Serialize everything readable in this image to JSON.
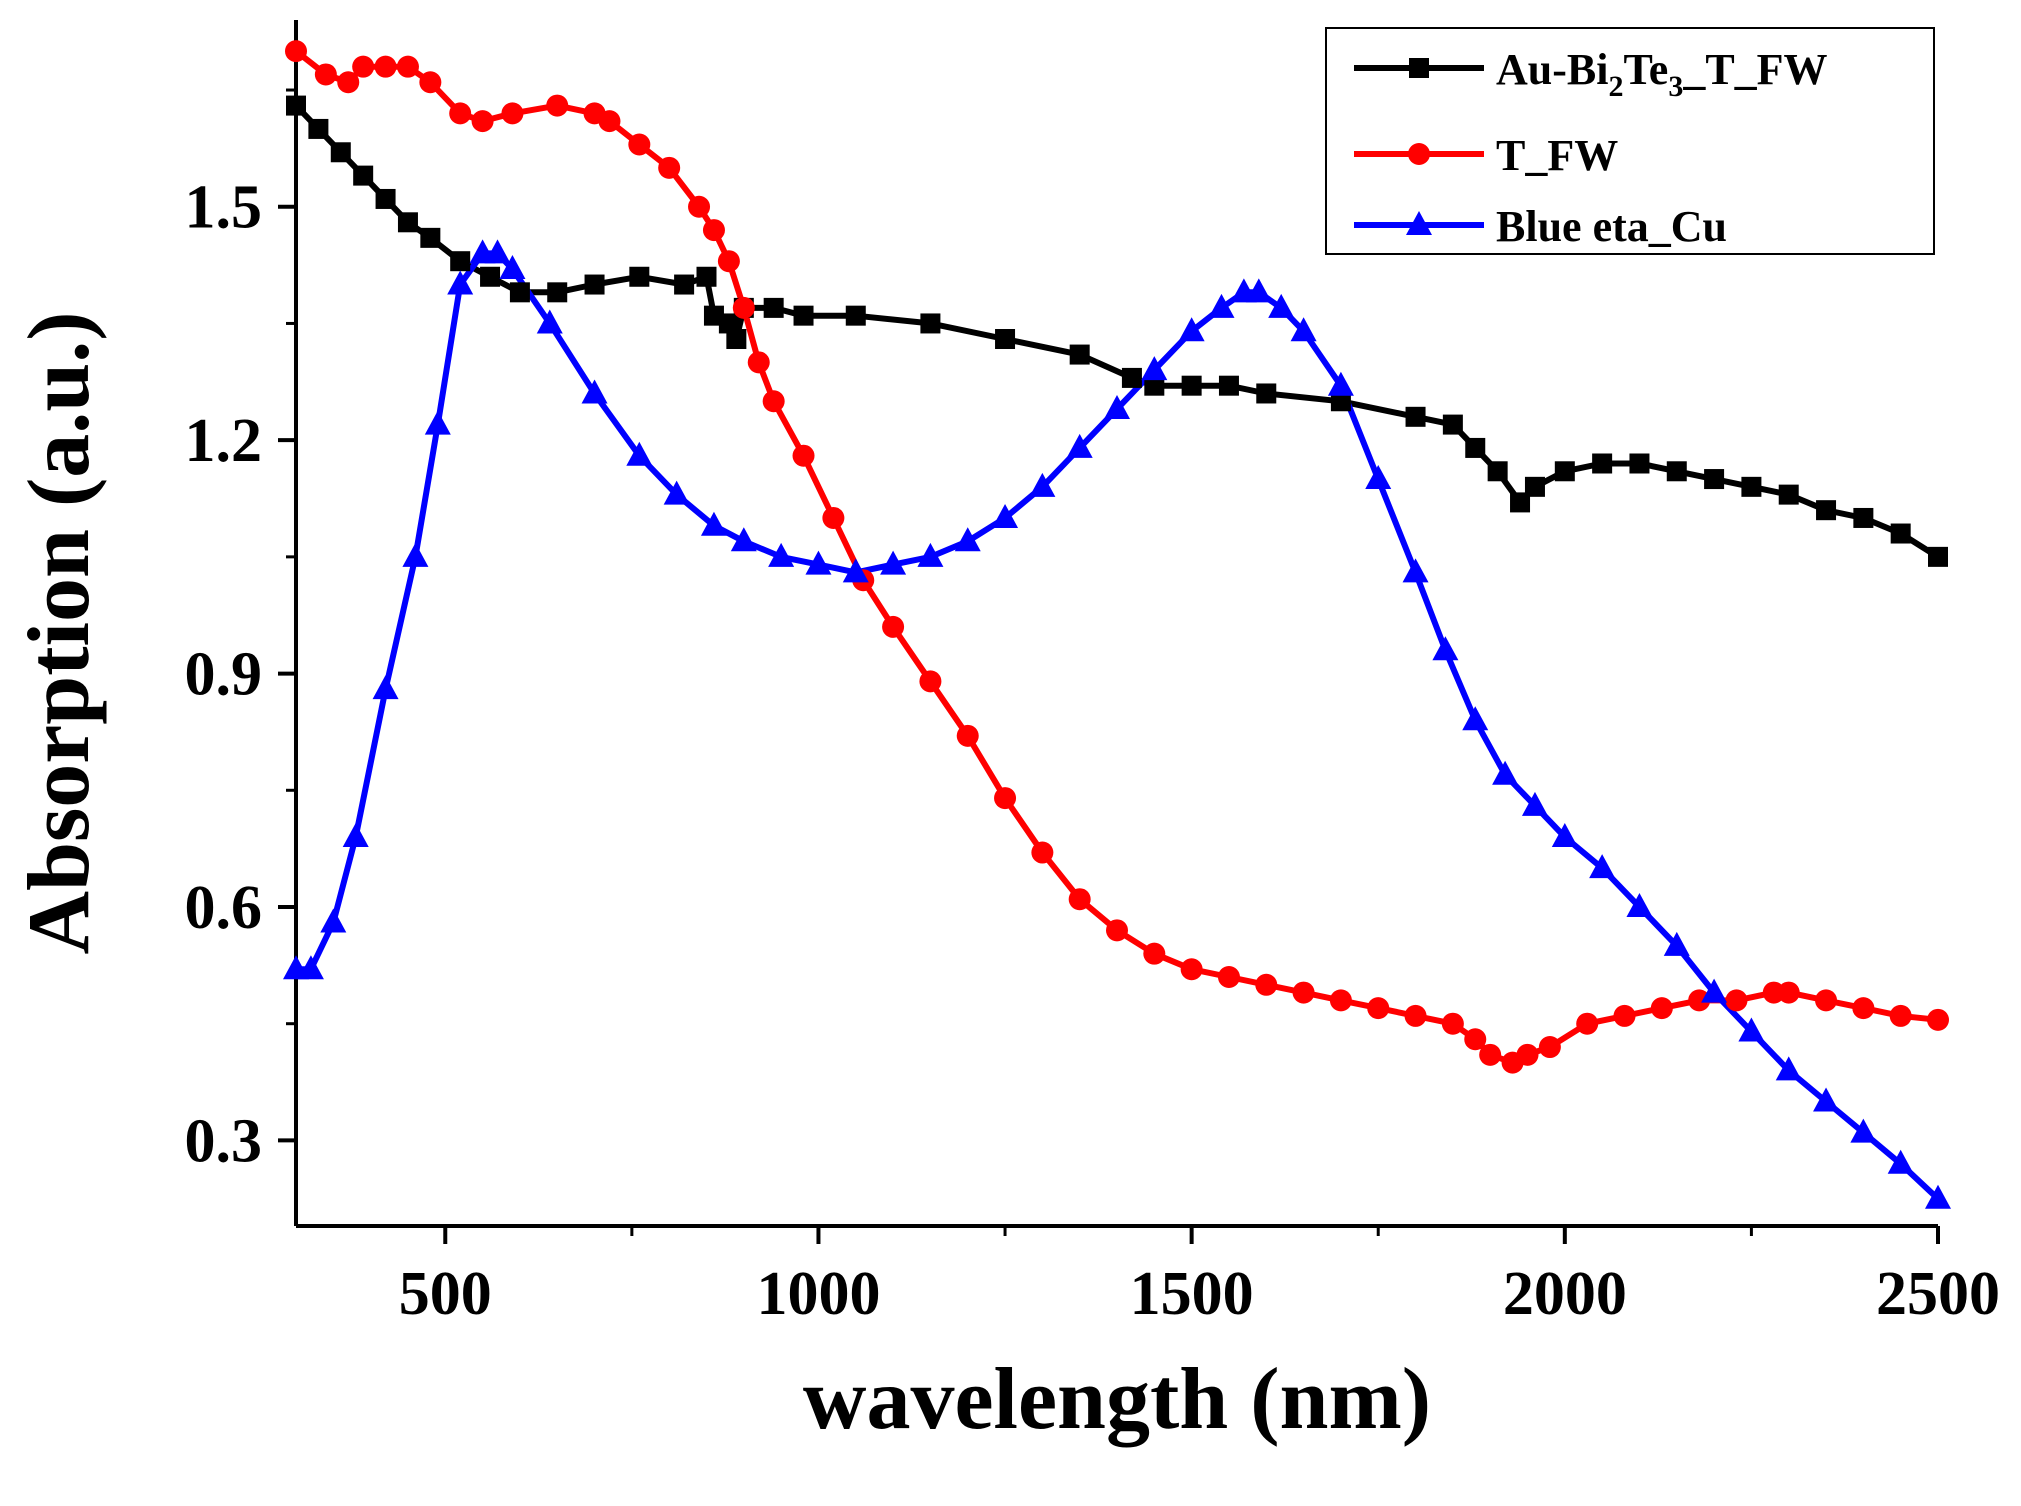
{
  "chart_data": {
    "type": "line",
    "title": "",
    "xlabel": "wavelength (nm)",
    "ylabel": "Absorption (a.u.)",
    "xlim": [
      300,
      2500
    ],
    "ylim": [
      0.19,
      1.74
    ],
    "xticks": [
      500,
      1000,
      1500,
      2000,
      2500
    ],
    "yticks": [
      0.3,
      0.6,
      0.9,
      1.2,
      1.5
    ],
    "grid": false,
    "legend_position": "top-right",
    "series": [
      {
        "name": "Au-Bi2Te3_T_FW",
        "legend_parts": {
          "main": "Au-Bi",
          "sub1": "2",
          "mid": "Te",
          "sub2": "3",
          "tail": "_T_FW"
        },
        "color": "#000000",
        "marker": "square",
        "x": [
          300,
          330,
          360,
          390,
          420,
          450,
          480,
          520,
          560,
          600,
          650,
          700,
          760,
          820,
          850,
          860,
          880,
          890,
          900,
          940,
          980,
          1050,
          1150,
          1250,
          1350,
          1420,
          1450,
          1500,
          1550,
          1600,
          1700,
          1800,
          1850,
          1880,
          1910,
          1940,
          1960,
          2000,
          2050,
          2100,
          2150,
          2200,
          2250,
          2300,
          2350,
          2400,
          2450,
          2500
        ],
        "y": [
          1.63,
          1.6,
          1.57,
          1.54,
          1.51,
          1.48,
          1.46,
          1.43,
          1.41,
          1.39,
          1.39,
          1.4,
          1.41,
          1.4,
          1.41,
          1.36,
          1.35,
          1.33,
          1.37,
          1.37,
          1.36,
          1.36,
          1.35,
          1.33,
          1.31,
          1.28,
          1.27,
          1.27,
          1.27,
          1.26,
          1.25,
          1.23,
          1.22,
          1.19,
          1.16,
          1.12,
          1.14,
          1.16,
          1.17,
          1.17,
          1.16,
          1.15,
          1.14,
          1.13,
          1.11,
          1.1,
          1.08,
          1.05
        ]
      },
      {
        "name": "T_FW",
        "color": "#ff0000",
        "marker": "circle",
        "x": [
          300,
          340,
          370,
          390,
          420,
          450,
          480,
          520,
          550,
          590,
          650,
          700,
          720,
          760,
          800,
          840,
          860,
          880,
          900,
          920,
          940,
          980,
          1020,
          1060,
          1100,
          1150,
          1200,
          1250,
          1300,
          1350,
          1400,
          1450,
          1500,
          1550,
          1600,
          1650,
          1700,
          1750,
          1800,
          1850,
          1880,
          1900,
          1930,
          1950,
          1980,
          2030,
          2080,
          2130,
          2180,
          2230,
          2280,
          2300,
          2350,
          2400,
          2450,
          2500
        ],
        "y": [
          1.7,
          1.67,
          1.66,
          1.68,
          1.68,
          1.68,
          1.66,
          1.62,
          1.61,
          1.62,
          1.63,
          1.62,
          1.61,
          1.58,
          1.55,
          1.5,
          1.47,
          1.43,
          1.37,
          1.3,
          1.25,
          1.18,
          1.1,
          1.02,
          0.96,
          0.89,
          0.82,
          0.74,
          0.67,
          0.61,
          0.57,
          0.54,
          0.52,
          0.51,
          0.5,
          0.49,
          0.48,
          0.47,
          0.46,
          0.45,
          0.43,
          0.41,
          0.4,
          0.41,
          0.42,
          0.45,
          0.46,
          0.47,
          0.48,
          0.48,
          0.49,
          0.49,
          0.48,
          0.47,
          0.46,
          0.455
        ]
      },
      {
        "name": "Blue eta_Cu",
        "color": "#0000ff",
        "marker": "triangle",
        "x": [
          300,
          320,
          350,
          380,
          420,
          460,
          490,
          520,
          550,
          570,
          590,
          640,
          700,
          760,
          810,
          860,
          900,
          950,
          1000,
          1050,
          1100,
          1150,
          1200,
          1250,
          1300,
          1350,
          1400,
          1450,
          1500,
          1540,
          1570,
          1590,
          1620,
          1650,
          1700,
          1750,
          1800,
          1840,
          1880,
          1920,
          1960,
          2000,
          2050,
          2100,
          2150,
          2200,
          2250,
          2300,
          2350,
          2400,
          2450,
          2500
        ],
        "y": [
          0.52,
          0.52,
          0.58,
          0.69,
          0.88,
          1.05,
          1.22,
          1.4,
          1.44,
          1.44,
          1.42,
          1.35,
          1.26,
          1.18,
          1.13,
          1.09,
          1.07,
          1.05,
          1.04,
          1.03,
          1.04,
          1.05,
          1.07,
          1.1,
          1.14,
          1.19,
          1.24,
          1.29,
          1.34,
          1.37,
          1.39,
          1.39,
          1.37,
          1.34,
          1.27,
          1.15,
          1.03,
          0.93,
          0.84,
          0.77,
          0.73,
          0.69,
          0.65,
          0.6,
          0.55,
          0.49,
          0.44,
          0.39,
          0.35,
          0.31,
          0.27,
          0.225
        ]
      }
    ]
  }
}
